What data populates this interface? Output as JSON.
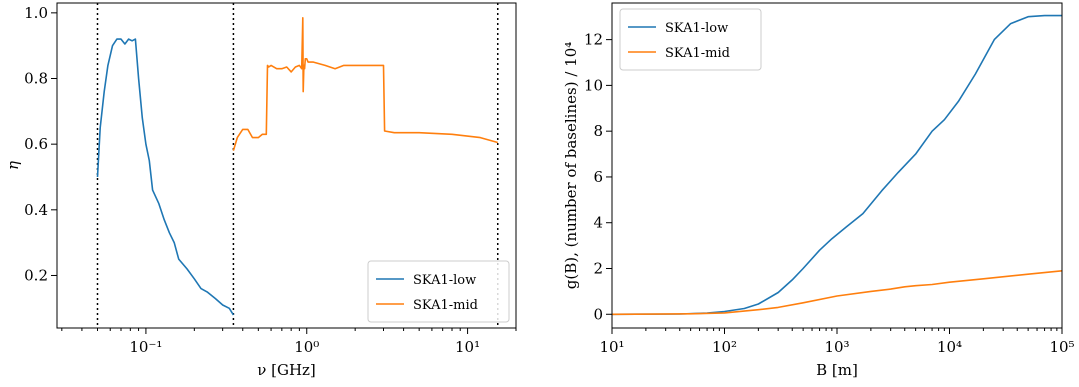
{
  "chart_data": [
    {
      "type": "line",
      "xscale": "log",
      "xlim": [
        0.028,
        20
      ],
      "ylim": [
        0.04,
        1.03
      ],
      "xlabel": "ν [GHz]",
      "ylabel": "η",
      "xticks": [
        {
          "value": 0.1,
          "label": "10⁻¹"
        },
        {
          "value": 1,
          "label": "10⁰"
        },
        {
          "value": 10,
          "label": "10¹"
        }
      ],
      "yticks": [
        0.2,
        0.4,
        0.6,
        0.8,
        1.0
      ],
      "ytick_labels": [
        "0.2",
        "0.4",
        "0.6",
        "0.8",
        "1.0"
      ],
      "vlines": [
        0.05,
        0.35,
        15.4
      ],
      "legend_position": "lower-right",
      "series": [
        {
          "name": "SKA1-low",
          "color": "#1f77b4",
          "x": [
            0.05,
            0.052,
            0.055,
            0.058,
            0.062,
            0.066,
            0.07,
            0.074,
            0.078,
            0.082,
            0.086,
            0.09,
            0.095,
            0.1,
            0.105,
            0.11,
            0.12,
            0.13,
            0.14,
            0.15,
            0.16,
            0.18,
            0.2,
            0.22,
            0.24,
            0.27,
            0.3,
            0.33,
            0.35
          ],
          "y": [
            0.5,
            0.65,
            0.76,
            0.84,
            0.9,
            0.92,
            0.92,
            0.905,
            0.92,
            0.915,
            0.92,
            0.8,
            0.68,
            0.6,
            0.55,
            0.46,
            0.42,
            0.37,
            0.33,
            0.3,
            0.25,
            0.22,
            0.19,
            0.16,
            0.15,
            0.13,
            0.11,
            0.1,
            0.08
          ]
        },
        {
          "name": "SKA1-mid",
          "color": "#ff7f0e",
          "x": [
            0.35,
            0.37,
            0.4,
            0.43,
            0.46,
            0.5,
            0.53,
            0.56,
            0.57,
            0.58,
            0.6,
            0.65,
            0.7,
            0.75,
            0.8,
            0.85,
            0.9,
            0.93,
            0.945,
            0.95,
            0.96,
            0.97,
            0.98,
            1.0,
            1.02,
            1.05,
            1.1,
            1.3,
            1.5,
            1.7,
            2.0,
            2.5,
            3.0,
            3.05,
            3.5,
            5.0,
            8.0,
            12.0,
            15.4
          ],
          "y": [
            0.58,
            0.62,
            0.645,
            0.645,
            0.62,
            0.62,
            0.63,
            0.63,
            0.84,
            0.835,
            0.84,
            0.83,
            0.83,
            0.835,
            0.82,
            0.835,
            0.84,
            0.83,
            0.985,
            0.76,
            0.84,
            0.83,
            0.86,
            0.86,
            0.85,
            0.85,
            0.85,
            0.84,
            0.83,
            0.84,
            0.84,
            0.84,
            0.84,
            0.64,
            0.635,
            0.635,
            0.63,
            0.62,
            0.605
          ]
        }
      ]
    },
    {
      "type": "line",
      "xscale": "log",
      "xlim": [
        10,
        100000
      ],
      "ylim": [
        -0.6,
        13.6
      ],
      "xlabel": "B [m]",
      "ylabel": "g(B), (number of baselines) / 10⁴",
      "xticks": [
        {
          "value": 10,
          "label": "10¹"
        },
        {
          "value": 100,
          "label": "10²"
        },
        {
          "value": 1000,
          "label": "10³"
        },
        {
          "value": 10000,
          "label": "10⁴"
        },
        {
          "value": 100000,
          "label": "10⁵"
        }
      ],
      "yticks": [
        0,
        2,
        4,
        6,
        8,
        10,
        12
      ],
      "ytick_labels": [
        "0",
        "2",
        "4",
        "6",
        "8",
        "10",
        "12"
      ],
      "legend_position": "upper-left",
      "series": [
        {
          "name": "SKA1-low",
          "color": "#1f77b4",
          "x": [
            10,
            40,
            70,
            100,
            150,
            200,
            300,
            400,
            500,
            700,
            900,
            1200,
            1700,
            2500,
            3500,
            5000,
            7000,
            9000,
            12000,
            17000,
            25000,
            35000,
            50000,
            70000,
            100000
          ],
          "y": [
            0,
            0.01,
            0.05,
            0.12,
            0.25,
            0.45,
            0.95,
            1.5,
            2.0,
            2.8,
            3.3,
            3.8,
            4.4,
            5.4,
            6.2,
            7.0,
            8.0,
            8.5,
            9.3,
            10.5,
            12.0,
            12.7,
            13.0,
            13.05,
            13.05
          ]
        },
        {
          "name": "SKA1-mid",
          "color": "#ff7f0e",
          "x": [
            10,
            50,
            100,
            200,
            300,
            500,
            1000,
            2000,
            3000,
            4000,
            5000,
            7000,
            10000,
            20000,
            50000,
            100000
          ],
          "y": [
            0,
            0.02,
            0.06,
            0.2,
            0.3,
            0.5,
            0.8,
            1.0,
            1.1,
            1.2,
            1.25,
            1.3,
            1.4,
            1.55,
            1.75,
            1.9
          ]
        }
      ]
    }
  ]
}
